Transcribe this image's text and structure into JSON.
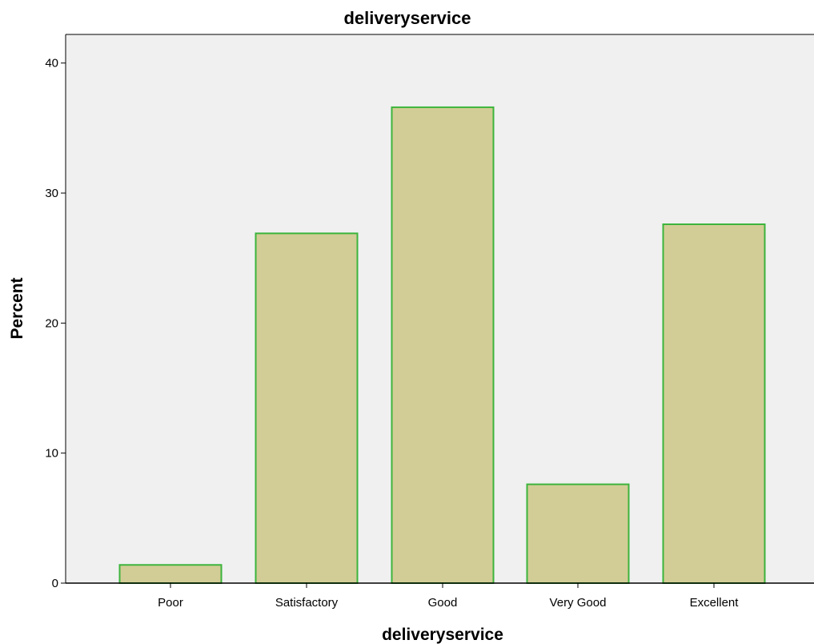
{
  "chart_data": {
    "type": "bar",
    "title": "deliveryservice",
    "xlabel": "deliveryservice",
    "ylabel": "Percent",
    "categories": [
      "Poor",
      "Satisfactory",
      "Good",
      "Very Good",
      "Excellent"
    ],
    "values": [
      1.4,
      26.9,
      36.6,
      7.6,
      27.6
    ],
    "ylim": [
      0,
      42.2
    ],
    "yticks": [
      0,
      10,
      20,
      30,
      40
    ],
    "grid": false,
    "legend": "none",
    "colors": {
      "plot_background": "#f0f0f0",
      "bar_fill": "#d2cd96",
      "bar_stroke": "#3cb43c",
      "axis": "#000000"
    }
  }
}
